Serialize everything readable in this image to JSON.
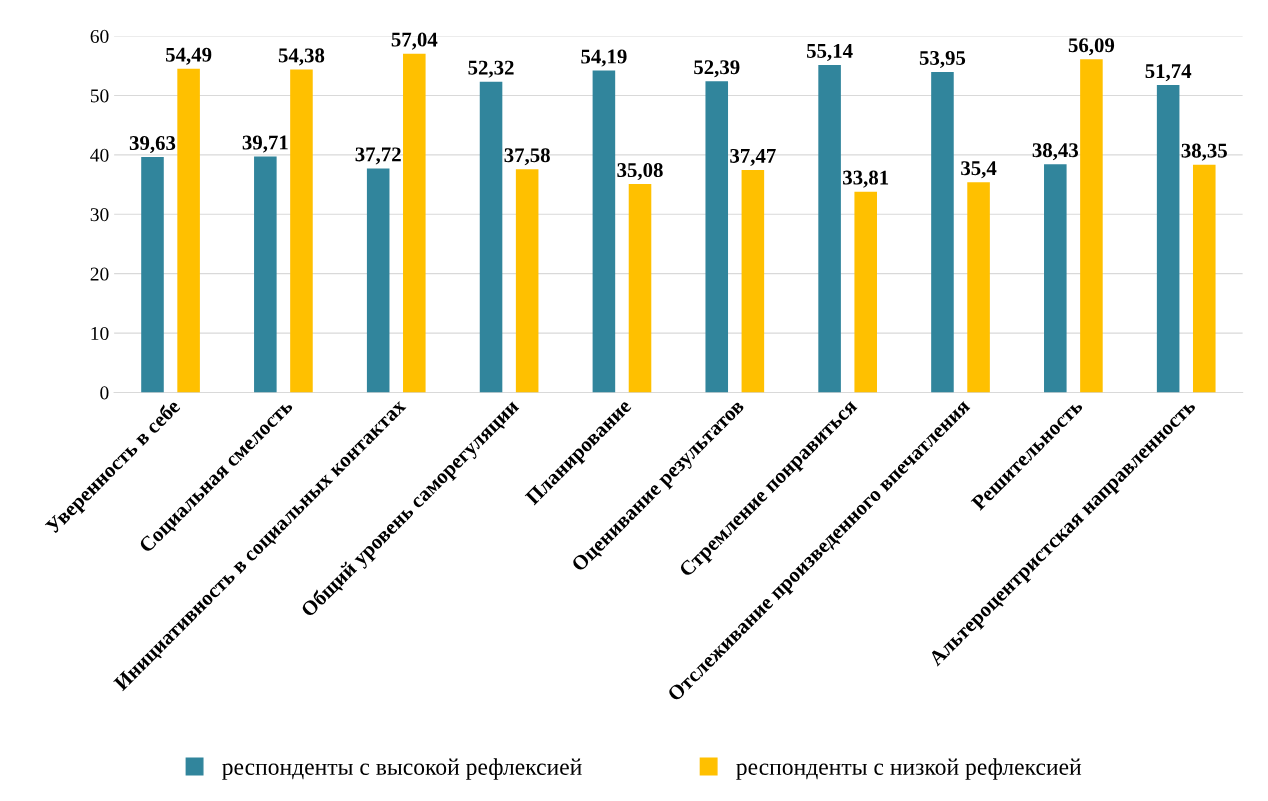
{
  "chart_data": {
    "type": "bar",
    "categories": [
      "Уверенность в себе",
      "Социальная смелость",
      "Инициативность в социальных контактах",
      "Общий уровень саморегуляции",
      "Планирование",
      "Оценивание результатов",
      "Стремление понравиться",
      "Отслеживание произведенного впечатления",
      "Решительность",
      "Альтероцентристская направленность"
    ],
    "series": [
      {
        "name": "респонденты с высокой рефлексией",
        "color": "#31859c",
        "values": [
          39.63,
          39.71,
          37.72,
          52.32,
          54.19,
          52.39,
          55.14,
          53.95,
          38.43,
          51.74
        ],
        "value_labels": [
          "39,63",
          "39,71",
          "37,72",
          "52,32",
          "54,19",
          "52,39",
          "55,14",
          "53,95",
          "38,43",
          "51,74"
        ]
      },
      {
        "name": "респонденты с низкой рефлексией",
        "color": "#ffc000",
        "values": [
          54.49,
          54.38,
          57.04,
          37.58,
          35.08,
          37.47,
          33.81,
          35.4,
          56.09,
          38.35
        ],
        "value_labels": [
          "54,49",
          "54,38",
          "57,04",
          "37,58",
          "35,08",
          "37,47",
          "33,81",
          "35,4",
          "56,09",
          "38,35"
        ]
      }
    ],
    "ylim": [
      0,
      60
    ],
    "yticks": [
      0,
      10,
      20,
      30,
      40,
      50,
      60
    ],
    "grid": "y",
    "legend": "bottom"
  }
}
